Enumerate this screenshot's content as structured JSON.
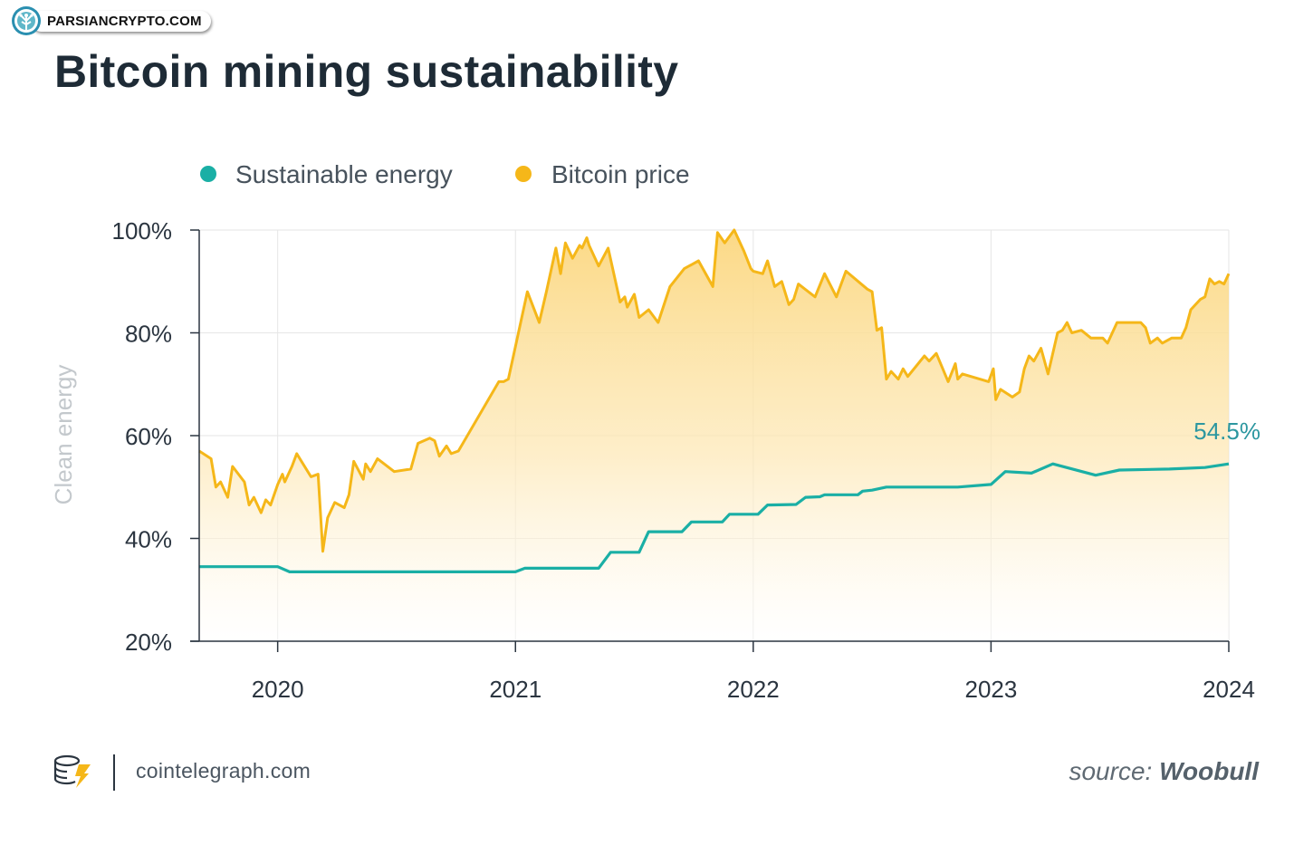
{
  "watermark": {
    "text": "PARSIANCRYPTO.COM"
  },
  "title": "Bitcoin mining sustainability",
  "footer": {
    "site": "cointelegraph.com",
    "source_prefix": "source:",
    "source_name": "Woobull"
  },
  "colors": {
    "sustainable": "#1aafa5",
    "price_line": "#f5b719",
    "price_fill": "#fbdc8c",
    "axis": "#2b3540",
    "grid": "#e6e6e6",
    "ylabel": "#c3c8cc",
    "end_label": "#2c97a0"
  },
  "chart_data": {
    "type": "area",
    "title": "Bitcoin mining sustainability",
    "ylabel": "Clean energy",
    "xlabel": "",
    "ylim": [
      20,
      100
    ],
    "xlim": [
      2019.67,
      2024.0
    ],
    "yticks": [
      20,
      40,
      60,
      80,
      100
    ],
    "ytick_labels": [
      "20%",
      "40%",
      "60%",
      "80%",
      "100%"
    ],
    "xticks": [
      2020,
      2021,
      2022,
      2023,
      2024
    ],
    "xtick_labels": [
      "2020",
      "2021",
      "2022",
      "2023",
      "2024"
    ],
    "legend": [
      "Sustainable energy",
      "Bitcoin price"
    ],
    "legend_position": "top-left",
    "end_label": "54.5%",
    "series": [
      {
        "name": "Sustainable energy",
        "x": [
          2019.67,
          2020.0,
          2020.05,
          2020.5,
          2021.0,
          2021.04,
          2021.35,
          2021.4,
          2021.52,
          2021.56,
          2021.7,
          2021.74,
          2021.87,
          2021.9,
          2022.02,
          2022.06,
          2022.18,
          2022.22,
          2022.28,
          2022.3,
          2022.44,
          2022.46,
          2022.5,
          2022.56,
          2022.86,
          2023.0,
          2023.06,
          2023.17,
          2023.26,
          2023.44,
          2023.54,
          2023.75,
          2023.9,
          2024.0
        ],
        "values": [
          34.5,
          34.5,
          33.5,
          33.5,
          33.5,
          34.2,
          34.2,
          37.3,
          37.3,
          41.3,
          41.3,
          43.2,
          43.2,
          44.7,
          44.7,
          46.5,
          46.6,
          48.0,
          48.1,
          48.5,
          48.5,
          49.2,
          49.4,
          50.0,
          50.0,
          50.5,
          53.0,
          52.7,
          54.5,
          52.3,
          53.3,
          53.5,
          53.8,
          54.5
        ]
      },
      {
        "name": "Bitcoin price",
        "x": [
          2019.67,
          2019.72,
          2019.74,
          2019.76,
          2019.79,
          2019.81,
          2019.86,
          2019.88,
          2019.9,
          2019.93,
          2019.95,
          2019.97,
          2020.0,
          2020.02,
          2020.03,
          2020.06,
          2020.08,
          2020.14,
          2020.17,
          2020.19,
          2020.21,
          2020.24,
          2020.28,
          2020.3,
          2020.32,
          2020.36,
          2020.37,
          2020.39,
          2020.42,
          2020.49,
          2020.56,
          2020.59,
          2020.64,
          2020.66,
          2020.68,
          2020.71,
          2020.73,
          2020.76,
          2020.93,
          2020.95,
          2020.97,
          2021.05,
          2021.1,
          2021.13,
          2021.17,
          2021.19,
          2021.21,
          2021.24,
          2021.27,
          2021.28,
          2021.3,
          2021.31,
          2021.35,
          2021.39,
          2021.44,
          2021.46,
          2021.47,
          2021.5,
          2021.52,
          2021.56,
          2021.6,
          2021.65,
          2021.71,
          2021.77,
          2021.83,
          2021.85,
          2021.88,
          2021.92,
          2021.96,
          2021.99,
          2022.0,
          2022.04,
          2022.06,
          2022.09,
          2022.12,
          2022.15,
          2022.17,
          2022.19,
          2022.26,
          2022.3,
          2022.35,
          2022.39,
          2022.48,
          2022.5,
          2022.52,
          2022.54,
          2022.56,
          2022.58,
          2022.61,
          2022.63,
          2022.65,
          2022.72,
          2022.74,
          2022.77,
          2022.82,
          2022.85,
          2022.86,
          2022.88,
          2022.99,
          2023.01,
          2023.02,
          2023.04,
          2023.09,
          2023.12,
          2023.14,
          2023.16,
          2023.18,
          2023.21,
          2023.24,
          2023.28,
          2023.3,
          2023.32,
          2023.34,
          2023.38,
          2023.42,
          2023.47,
          2023.49,
          2023.53,
          2023.63,
          2023.65,
          2023.67,
          2023.7,
          2023.72,
          2023.76,
          2023.8,
          2023.82,
          2023.84,
          2023.88,
          2023.9,
          2023.92,
          2023.94,
          2023.96,
          2023.98,
          2024.0
        ],
        "values": [
          57,
          55.5,
          50,
          51,
          48,
          54,
          51,
          46.5,
          48,
          45,
          47.5,
          46.5,
          50.5,
          52.5,
          51,
          54,
          56.5,
          52,
          52.5,
          37.5,
          44,
          47,
          46,
          48.5,
          55,
          51.5,
          54.5,
          53,
          55.5,
          53,
          53.5,
          58.5,
          59.5,
          59,
          56,
          58,
          56.5,
          57,
          70.5,
          70.5,
          71,
          88,
          82,
          88,
          96.5,
          91.5,
          97.5,
          94.5,
          97,
          96.5,
          98.5,
          97,
          93,
          96.5,
          86,
          87,
          85,
          87.5,
          83,
          84.5,
          82,
          89,
          92.5,
          94,
          89,
          99.5,
          97.5,
          100,
          96,
          92.5,
          92,
          91.5,
          94,
          89,
          90,
          85.5,
          86.5,
          89.5,
          87,
          91.5,
          87,
          92,
          88.5,
          88,
          80.5,
          81,
          71,
          72.5,
          71,
          73,
          71.5,
          75.5,
          74.5,
          76,
          70.5,
          74,
          71,
          72,
          70.5,
          73,
          67,
          69,
          67.5,
          68.5,
          73,
          75.5,
          74.5,
          77,
          72,
          80,
          80.5,
          82,
          80,
          80.5,
          79,
          79,
          78,
          82,
          82,
          81,
          78,
          79,
          78,
          79,
          79,
          81,
          84.5,
          86.5,
          87,
          90.5,
          89.5,
          90,
          89.5,
          91.5
        ]
      }
    ]
  }
}
